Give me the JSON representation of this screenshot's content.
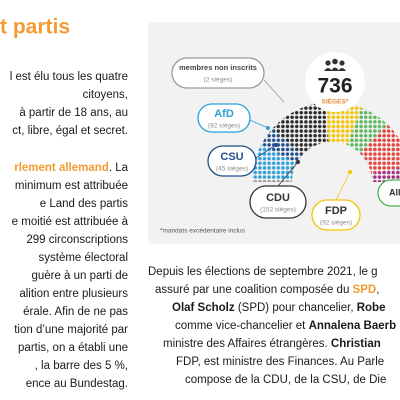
{
  "title": "t partis",
  "left_text": [
    [
      "l est élu tous les quatre"
    ],
    [
      "citoyens,"
    ],
    [
      "à partir de 18 ans, au"
    ],
    [
      "ct, libre, égal et secret."
    ],
    [
      "rlement allemand",
      ". La"
    ],
    [
      "minimum est attribuée"
    ],
    [
      "e Land des partis"
    ],
    [
      "e moitié est attribuée à"
    ],
    [
      "299 circonscriptions"
    ],
    [
      "système électoral"
    ],
    [
      "guère à un parti de"
    ],
    [
      "alition entre plusieurs"
    ],
    [
      "érale. Afin de ne pas"
    ],
    [
      "tion d’une majorité par"
    ],
    [
      "partis, on a établi une"
    ],
    [
      ", la barre des 5 %,"
    ],
    [
      "ence au Bundestag."
    ]
  ],
  "diagram": {
    "non_inscrits": {
      "label": "membres non inscrits",
      "seats": "(2 sièges)"
    },
    "total": {
      "value": "736",
      "label": "SIÈGES*"
    },
    "parties": [
      {
        "name": "AfD",
        "seats": "(82 sièges)"
      },
      {
        "name": "CSU",
        "seats": "(45 sièges)"
      },
      {
        "name": "CDU",
        "seats": "(152 sièges)"
      },
      {
        "name": "FDP",
        "seats": "(92 sièges)"
      },
      {
        "name": "All"
      }
    ],
    "footnote": "*mandats excédentaire inclus"
  },
  "right_text": [
    [
      "Depuis les élections de septembre 2021, le g"
    ],
    [
      "assuré par une coalition composée du ",
      "SPD",
      ", "
    ],
    [
      "Olaf Scholz",
      " (SPD) pour chancelier, ",
      "Robe"
    ],
    [
      "comme vice-chancelier et ",
      "Annalena Baerb"
    ],
    [
      "ministre des Affaires étrangères. ",
      "Christian "
    ],
    [
      "FDP, est ministre des Finances. Au Parle"
    ],
    [
      "compose de la CDU, de la CSU, de Die"
    ]
  ]
}
